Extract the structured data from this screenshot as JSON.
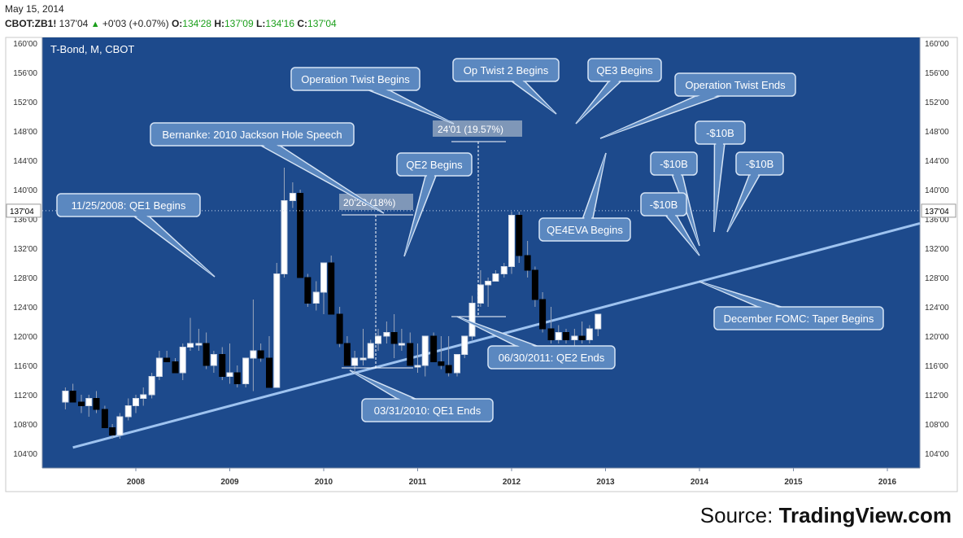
{
  "header": {
    "date": "May 15, 2014",
    "symbol": "CBOT:ZB1!",
    "last": "137'04",
    "change": "+0'03 (+0.07%)",
    "open_label": "O:",
    "open": "134'28",
    "high_label": "H:",
    "high": "137'09",
    "low_label": "L:",
    "low": "134'16",
    "close_label": "C:",
    "close": "137'04"
  },
  "source": {
    "prefix": "Source: ",
    "brand": "TradingView.com"
  },
  "colors": {
    "plot_bg": "#1d4a8c",
    "up": "#ffffff",
    "down": "#000000",
    "callout": "#5b88c0",
    "trendline": "#9ec3f0"
  },
  "chart_data": {
    "type": "candlestick",
    "title": "T-Bond, M, CBOT",
    "frequency": "monthly",
    "price_tag": "137'04",
    "y_ticks": [
      "104'00",
      "108'00",
      "112'00",
      "116'00",
      "120'00",
      "124'00",
      "128'00",
      "132'00",
      "136'00",
      "140'00",
      "144'00",
      "148'00",
      "152'00",
      "156'00",
      "160'00"
    ],
    "x_ticks": [
      "2008",
      "2009",
      "2010",
      "2011",
      "2012",
      "2013",
      "2014",
      "2015",
      "2016"
    ],
    "x_range": [
      2007.0,
      2016.25
    ],
    "ylim": [
      101.5,
      161.5
    ],
    "y_axis_both_sides": true,
    "grid": false,
    "candles": [
      [
        2007.25,
        111,
        113,
        110,
        112.5
      ],
      [
        2007.33,
        112.5,
        113.5,
        111,
        111
      ],
      [
        2007.42,
        111,
        112,
        109.5,
        110.5
      ],
      [
        2007.5,
        110.5,
        112,
        109,
        111.5
      ],
      [
        2007.58,
        111.5,
        112.5,
        109.5,
        110
      ],
      [
        2007.67,
        110,
        110.5,
        107.5,
        107.5
      ],
      [
        2007.75,
        107.5,
        108,
        106,
        106.5
      ],
      [
        2007.83,
        106.5,
        109.5,
        106,
        109
      ],
      [
        2007.92,
        109,
        111.5,
        108.5,
        110.5
      ],
      [
        2008.0,
        110.5,
        112,
        109.5,
        111.5
      ],
      [
        2008.08,
        111.5,
        113,
        110.5,
        112
      ],
      [
        2008.17,
        112,
        115,
        111.5,
        114.5
      ],
      [
        2008.25,
        114.5,
        118,
        114,
        117
      ],
      [
        2008.33,
        117,
        118,
        116.5,
        116.5
      ],
      [
        2008.42,
        116.5,
        117,
        115,
        115
      ],
      [
        2008.5,
        115,
        119,
        114,
        118.5
      ],
      [
        2008.58,
        118.5,
        122.5,
        118,
        119
      ],
      [
        2008.67,
        119,
        121,
        118,
        119
      ],
      [
        2008.75,
        119,
        120.5,
        115.5,
        116
      ],
      [
        2008.83,
        116,
        118,
        115,
        117.5
      ],
      [
        2008.92,
        117.5,
        118.5,
        114,
        114.5
      ],
      [
        2009.0,
        114.5,
        119,
        113.5,
        115
      ],
      [
        2009.08,
        115,
        116,
        113,
        113.5
      ],
      [
        2009.17,
        113.5,
        117,
        113,
        117
      ],
      [
        2009.25,
        117,
        125,
        112.5,
        118
      ],
      [
        2009.33,
        118,
        119,
        116.5,
        117
      ],
      [
        2009.42,
        117,
        120,
        113,
        113
      ],
      [
        2009.5,
        113,
        130,
        113,
        128.5
      ],
      [
        2009.58,
        128.5,
        143,
        128,
        138.5
      ],
      [
        2009.67,
        138.5,
        141,
        137.5,
        139.5
      ],
      [
        2009.75,
        139.5,
        140,
        128,
        128
      ],
      [
        2009.83,
        128,
        128.5,
        124,
        124.5
      ],
      [
        2009.92,
        124.5,
        127.5,
        123.5,
        126
      ],
      [
        2010.0,
        126,
        130,
        123,
        130
      ],
      [
        2010.08,
        130,
        131,
        123,
        123
      ],
      [
        2010.17,
        123,
        124,
        118.5,
        119
      ],
      [
        2010.25,
        119,
        120,
        116,
        116
      ],
      [
        2010.33,
        116,
        118,
        115,
        117
      ],
      [
        2010.42,
        117,
        121,
        116,
        117
      ],
      [
        2010.5,
        117,
        119.5,
        117,
        119
      ],
      [
        2010.58,
        119,
        121,
        118,
        120
      ],
      [
        2010.67,
        120,
        122,
        119,
        120.5
      ],
      [
        2010.75,
        120.5,
        123,
        117,
        119
      ],
      [
        2010.83,
        119,
        121,
        118,
        119
      ],
      [
        2010.92,
        119,
        120.5,
        116,
        116
      ],
      [
        2011.0,
        116,
        119,
        115,
        116
      ],
      [
        2011.08,
        116,
        120,
        114.5,
        120
      ],
      [
        2011.17,
        120,
        120.5,
        116.5,
        116.5
      ],
      [
        2011.25,
        116.5,
        120,
        115.5,
        116
      ],
      [
        2011.33,
        116,
        120,
        114.5,
        115
      ],
      [
        2011.42,
        115,
        117.5,
        114.5,
        117.5
      ],
      [
        2011.5,
        117.5,
        120,
        117,
        120
      ],
      [
        2011.58,
        120,
        125.5,
        119.5,
        124.5
      ],
      [
        2011.67,
        124.5,
        129,
        124,
        127
      ],
      [
        2011.75,
        127,
        128,
        124,
        127.5
      ],
      [
        2011.83,
        127.5,
        129,
        128,
        128.5
      ],
      [
        2011.92,
        128.5,
        130,
        128,
        129.5
      ],
      [
        2012.0,
        129.5,
        137,
        128.5,
        136.5
      ],
      [
        2012.08,
        136.5,
        137,
        130,
        131
      ],
      [
        2012.17,
        131,
        133,
        128,
        129
      ],
      [
        2012.25,
        129,
        129.5,
        124,
        125
      ],
      [
        2012.33,
        125,
        126,
        120.5,
        121
      ],
      [
        2012.42,
        121,
        124,
        119,
        119.5
      ],
      [
        2012.5,
        119.5,
        121.5,
        119,
        120.5
      ],
      [
        2012.58,
        120.5,
        121,
        119,
        119.5
      ],
      [
        2012.67,
        119.5,
        121,
        118,
        120
      ],
      [
        2012.75,
        120,
        122,
        119,
        119.5
      ],
      [
        2012.83,
        119.5,
        121.5,
        119,
        121
      ],
      [
        2012.92,
        121,
        123,
        120,
        123
      ]
    ],
    "callouts": [
      {
        "text": "11/25/2008: QE1 Begins"
      },
      {
        "text": "Bernanke: 2010 Jackson Hole Speech"
      },
      {
        "text": "Operation Twist Begins"
      },
      {
        "text": "QE2 Begins"
      },
      {
        "text": "Op Twist 2 Begins"
      },
      {
        "text": "QE3 Begins"
      },
      {
        "text": "Operation Twist Ends"
      },
      {
        "text": "QE4EVA Begins"
      },
      {
        "text": "-$10B"
      },
      {
        "text": "-$10B"
      },
      {
        "text": "-$10B"
      },
      {
        "text": "-$10B"
      },
      {
        "text": "December FOMC: Taper Begins"
      },
      {
        "text": "06/30/2011: QE2 Ends"
      },
      {
        "text": "03/31/2010: QE1 Ends"
      }
    ],
    "measure_labels": [
      "20'28 (18%)",
      "24'01 (19.57%)"
    ]
  }
}
